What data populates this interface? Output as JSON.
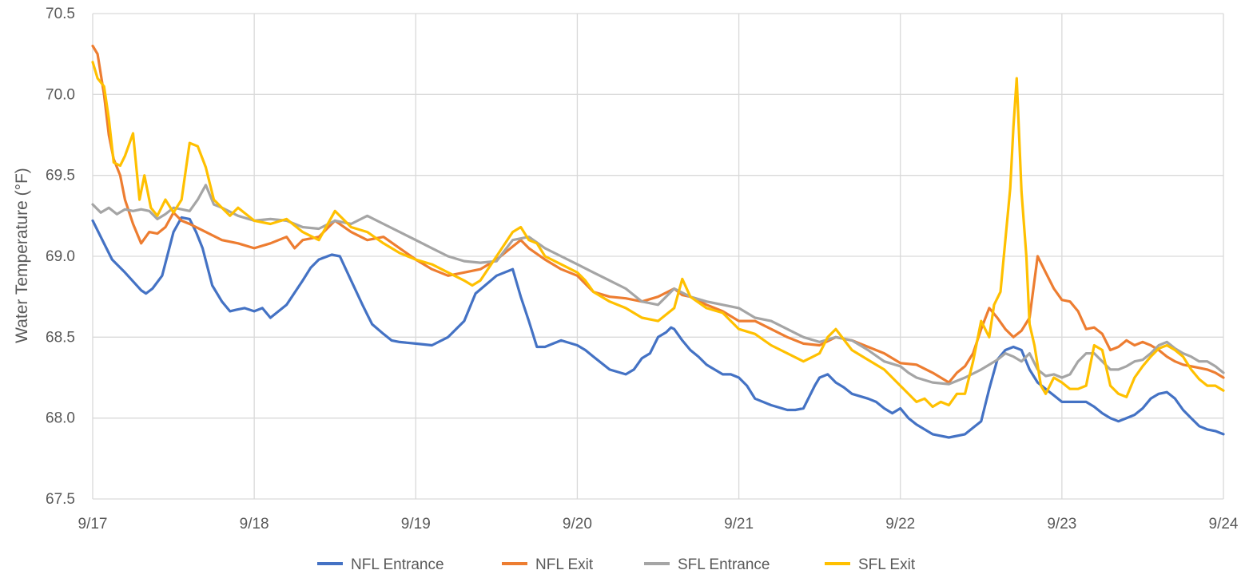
{
  "chart_data": {
    "type": "line",
    "title": "",
    "xlabel": "",
    "ylabel": "Water Temperature (°F)",
    "xlim": [
      0,
      7
    ],
    "ylim": [
      67.5,
      70.5
    ],
    "grid": true,
    "legend_position": "bottom",
    "x_tick_labels": [
      "9/17",
      "9/18",
      "9/19",
      "9/20",
      "9/21",
      "9/22",
      "9/23",
      "9/24"
    ],
    "y_tick_labels": [
      "67.5",
      "68.0",
      "68.5",
      "69.0",
      "69.5",
      "70.0",
      "70.5"
    ],
    "series": [
      {
        "name": "NFL Entrance",
        "color": "#4472C4",
        "x": [
          0,
          0.05,
          0.12,
          0.2,
          0.3,
          0.33,
          0.37,
          0.43,
          0.5,
          0.55,
          0.6,
          0.64,
          0.68,
          0.74,
          0.8,
          0.85,
          0.89,
          0.94,
          1,
          1.05,
          1.1,
          1.2,
          1.3,
          1.35,
          1.4,
          1.48,
          1.53,
          1.6,
          1.67,
          1.7,
          1.73,
          1.8,
          1.85,
          1.9,
          2,
          2.1,
          2.2,
          2.3,
          2.37,
          2.5,
          2.6,
          2.65,
          2.7,
          2.75,
          2.8,
          2.85,
          2.9,
          3,
          3.05,
          3.1,
          3.2,
          3.3,
          3.35,
          3.4,
          3.45,
          3.5,
          3.55,
          3.58,
          3.6,
          3.65,
          3.7,
          3.75,
          3.8,
          3.85,
          3.9,
          3.95,
          4,
          4.05,
          4.1,
          4.2,
          4.3,
          4.35,
          4.4,
          4.47,
          4.5,
          4.55,
          4.6,
          4.65,
          4.7,
          4.8,
          4.85,
          4.9,
          4.95,
          5,
          5.05,
          5.1,
          5.2,
          5.3,
          5.35,
          5.4,
          5.45,
          5.5,
          5.55,
          5.6,
          5.65,
          5.7,
          5.75,
          5.8,
          5.85,
          5.9,
          5.95,
          6,
          6.05,
          6.1,
          6.15,
          6.2,
          6.25,
          6.3,
          6.35,
          6.4,
          6.45,
          6.5,
          6.55,
          6.6,
          6.65,
          6.7,
          6.75,
          6.8,
          6.85,
          6.9,
          6.95,
          7
        ],
        "values": [
          69.22,
          69.12,
          68.98,
          68.9,
          68.79,
          68.77,
          68.8,
          68.88,
          69.15,
          69.24,
          69.23,
          69.15,
          69.05,
          68.82,
          68.72,
          68.66,
          68.67,
          68.68,
          68.66,
          68.68,
          68.62,
          68.7,
          68.85,
          68.93,
          68.98,
          69.01,
          69.0,
          68.85,
          68.7,
          68.64,
          68.58,
          68.52,
          68.48,
          68.47,
          68.46,
          68.45,
          68.5,
          68.6,
          68.77,
          68.88,
          68.92,
          68.75,
          68.6,
          68.44,
          68.44,
          68.46,
          68.48,
          68.45,
          68.42,
          68.38,
          68.3,
          68.27,
          68.3,
          68.37,
          68.4,
          68.5,
          68.53,
          68.56,
          68.55,
          68.48,
          68.42,
          68.38,
          68.33,
          68.3,
          68.27,
          68.27,
          68.25,
          68.2,
          68.12,
          68.08,
          68.05,
          68.05,
          68.06,
          68.2,
          68.25,
          68.27,
          68.22,
          68.19,
          68.15,
          68.12,
          68.1,
          68.06,
          68.03,
          68.06,
          68.0,
          67.96,
          67.9,
          67.88,
          67.89,
          67.9,
          67.94,
          67.98,
          68.18,
          68.36,
          68.42,
          68.44,
          68.42,
          68.3,
          68.22,
          68.18,
          68.14,
          68.1,
          68.1,
          68.1,
          68.1,
          68.07,
          68.03,
          68.0,
          67.98,
          68.0,
          68.02,
          68.06,
          68.12,
          68.15,
          68.16,
          68.12,
          68.05,
          68.0,
          67.95,
          67.93,
          67.92,
          67.9
        ]
      },
      {
        "name": "NFL Exit",
        "color": "#ED7D31",
        "x": [
          0,
          0.03,
          0.07,
          0.1,
          0.13,
          0.17,
          0.2,
          0.25,
          0.3,
          0.35,
          0.4,
          0.45,
          0.5,
          0.55,
          0.6,
          0.7,
          0.8,
          0.9,
          1,
          1.1,
          1.2,
          1.25,
          1.3,
          1.4,
          1.5,
          1.6,
          1.7,
          1.8,
          1.9,
          2,
          2.1,
          2.2,
          2.3,
          2.4,
          2.5,
          2.6,
          2.65,
          2.7,
          2.8,
          2.9,
          3,
          3.1,
          3.2,
          3.3,
          3.4,
          3.5,
          3.6,
          3.65,
          3.7,
          3.8,
          3.9,
          4,
          4.1,
          4.2,
          4.3,
          4.4,
          4.5,
          4.6,
          4.7,
          4.8,
          4.9,
          5,
          5.1,
          5.2,
          5.25,
          5.3,
          5.35,
          5.4,
          5.45,
          5.5,
          5.55,
          5.6,
          5.65,
          5.7,
          5.75,
          5.8,
          5.85,
          5.9,
          5.95,
          6,
          6.05,
          6.1,
          6.15,
          6.2,
          6.25,
          6.3,
          6.35,
          6.4,
          6.45,
          6.5,
          6.55,
          6.6,
          6.65,
          6.7,
          6.75,
          6.8,
          6.85,
          6.9,
          6.95,
          7
        ],
        "values": [
          70.3,
          70.25,
          70.0,
          69.75,
          69.6,
          69.5,
          69.35,
          69.2,
          69.08,
          69.15,
          69.14,
          69.18,
          69.27,
          69.22,
          69.2,
          69.15,
          69.1,
          69.08,
          69.05,
          69.08,
          69.12,
          69.05,
          69.1,
          69.12,
          69.22,
          69.15,
          69.1,
          69.12,
          69.05,
          68.98,
          68.92,
          68.88,
          68.9,
          68.92,
          68.98,
          69.06,
          69.1,
          69.05,
          68.98,
          68.92,
          68.88,
          68.78,
          68.75,
          68.74,
          68.72,
          68.75,
          68.8,
          68.76,
          68.75,
          68.7,
          68.66,
          68.6,
          68.6,
          68.55,
          68.5,
          68.46,
          68.45,
          68.5,
          68.48,
          68.44,
          68.4,
          68.34,
          68.33,
          68.28,
          68.25,
          68.22,
          68.28,
          68.32,
          68.4,
          68.55,
          68.68,
          68.62,
          68.55,
          68.5,
          68.54,
          68.62,
          69.0,
          68.9,
          68.8,
          68.73,
          68.72,
          68.66,
          68.55,
          68.56,
          68.52,
          68.42,
          68.44,
          68.48,
          68.45,
          68.47,
          68.45,
          68.42,
          68.38,
          68.35,
          68.33,
          68.32,
          68.31,
          68.3,
          68.28,
          68.25
        ]
      },
      {
        "name": "SFL Entrance",
        "color": "#A5A5A5",
        "x": [
          0,
          0.05,
          0.1,
          0.15,
          0.2,
          0.25,
          0.3,
          0.35,
          0.4,
          0.45,
          0.5,
          0.55,
          0.6,
          0.65,
          0.7,
          0.75,
          0.8,
          0.9,
          1,
          1.1,
          1.2,
          1.3,
          1.4,
          1.5,
          1.6,
          1.7,
          1.8,
          1.9,
          2,
          2.1,
          2.2,
          2.3,
          2.4,
          2.5,
          2.6,
          2.7,
          2.8,
          2.9,
          3,
          3.1,
          3.2,
          3.3,
          3.4,
          3.5,
          3.6,
          3.7,
          3.8,
          3.9,
          4,
          4.1,
          4.2,
          4.3,
          4.4,
          4.5,
          4.6,
          4.7,
          4.8,
          4.9,
          5,
          5.05,
          5.1,
          5.2,
          5.3,
          5.4,
          5.5,
          5.6,
          5.65,
          5.7,
          5.75,
          5.8,
          5.85,
          5.9,
          5.95,
          6,
          6.05,
          6.1,
          6.15,
          6.2,
          6.25,
          6.3,
          6.35,
          6.4,
          6.45,
          6.5,
          6.55,
          6.6,
          6.65,
          6.7,
          6.75,
          6.8,
          6.85,
          6.9,
          6.95,
          7
        ],
        "values": [
          69.32,
          69.27,
          69.3,
          69.26,
          69.29,
          69.28,
          69.29,
          69.28,
          69.23,
          69.26,
          69.3,
          69.29,
          69.28,
          69.35,
          69.44,
          69.32,
          69.3,
          69.25,
          69.22,
          69.23,
          69.22,
          69.18,
          69.17,
          69.22,
          69.2,
          69.25,
          69.2,
          69.15,
          69.1,
          69.05,
          69.0,
          68.97,
          68.96,
          68.97,
          69.1,
          69.12,
          69.05,
          69.0,
          68.95,
          68.9,
          68.85,
          68.8,
          68.72,
          68.7,
          68.8,
          68.75,
          68.72,
          68.7,
          68.68,
          68.62,
          68.6,
          68.55,
          68.5,
          68.47,
          68.5,
          68.48,
          68.42,
          68.35,
          68.32,
          68.28,
          68.25,
          68.22,
          68.21,
          68.25,
          68.3,
          68.36,
          68.4,
          68.38,
          68.35,
          68.4,
          68.3,
          68.26,
          68.27,
          68.25,
          68.27,
          68.35,
          68.4,
          68.4,
          68.35,
          68.3,
          68.3,
          68.32,
          68.35,
          68.36,
          68.4,
          68.45,
          68.47,
          68.43,
          68.4,
          68.38,
          68.35,
          68.35,
          68.32,
          68.28
        ]
      },
      {
        "name": "SFL Exit",
        "color": "#FFC000",
        "x": [
          0,
          0.03,
          0.07,
          0.1,
          0.13,
          0.17,
          0.2,
          0.25,
          0.29,
          0.32,
          0.36,
          0.4,
          0.45,
          0.5,
          0.55,
          0.6,
          0.65,
          0.7,
          0.75,
          0.8,
          0.85,
          0.9,
          1,
          1.1,
          1.2,
          1.3,
          1.4,
          1.5,
          1.6,
          1.7,
          1.8,
          1.9,
          2,
          2.1,
          2.2,
          2.3,
          2.35,
          2.4,
          2.5,
          2.6,
          2.65,
          2.7,
          2.75,
          2.8,
          2.9,
          3,
          3.05,
          3.1,
          3.2,
          3.3,
          3.4,
          3.5,
          3.6,
          3.65,
          3.7,
          3.8,
          3.9,
          4,
          4.1,
          4.2,
          4.3,
          4.4,
          4.5,
          4.55,
          4.6,
          4.7,
          4.8,
          4.9,
          5,
          5.1,
          5.15,
          5.2,
          5.25,
          5.3,
          5.35,
          5.4,
          5.45,
          5.5,
          5.55,
          5.58,
          5.62,
          5.65,
          5.68,
          5.7,
          5.72,
          5.75,
          5.78,
          5.8,
          5.83,
          5.87,
          5.9,
          5.95,
          6,
          6.05,
          6.1,
          6.15,
          6.2,
          6.25,
          6.3,
          6.35,
          6.4,
          6.45,
          6.5,
          6.55,
          6.6,
          6.65,
          6.7,
          6.75,
          6.8,
          6.85,
          6.9,
          6.95,
          7
        ],
        "values": [
          70.2,
          70.1,
          70.05,
          69.85,
          69.58,
          69.56,
          69.62,
          69.76,
          69.35,
          69.5,
          69.3,
          69.25,
          69.35,
          69.27,
          69.35,
          69.7,
          69.68,
          69.55,
          69.35,
          69.3,
          69.25,
          69.3,
          69.22,
          69.2,
          69.23,
          69.15,
          69.1,
          69.28,
          69.18,
          69.15,
          69.08,
          69.02,
          68.98,
          68.95,
          68.9,
          68.85,
          68.82,
          68.85,
          69.0,
          69.15,
          69.18,
          69.1,
          69.08,
          69.0,
          68.95,
          68.9,
          68.85,
          68.78,
          68.72,
          68.68,
          68.62,
          68.6,
          68.68,
          68.86,
          68.75,
          68.68,
          68.65,
          68.55,
          68.52,
          68.45,
          68.4,
          68.35,
          68.4,
          68.5,
          68.55,
          68.42,
          68.36,
          68.3,
          68.2,
          68.1,
          68.12,
          68.07,
          68.1,
          68.08,
          68.15,
          68.15,
          68.35,
          68.6,
          68.5,
          68.7,
          68.78,
          69.1,
          69.42,
          69.8,
          70.1,
          69.4,
          69.0,
          68.58,
          68.45,
          68.2,
          68.15,
          68.25,
          68.22,
          68.18,
          68.18,
          68.2,
          68.45,
          68.42,
          68.2,
          68.15,
          68.13,
          68.25,
          68.32,
          68.38,
          68.43,
          68.45,
          68.42,
          68.38,
          68.3,
          68.24,
          68.2,
          68.2,
          68.17
        ]
      }
    ]
  }
}
